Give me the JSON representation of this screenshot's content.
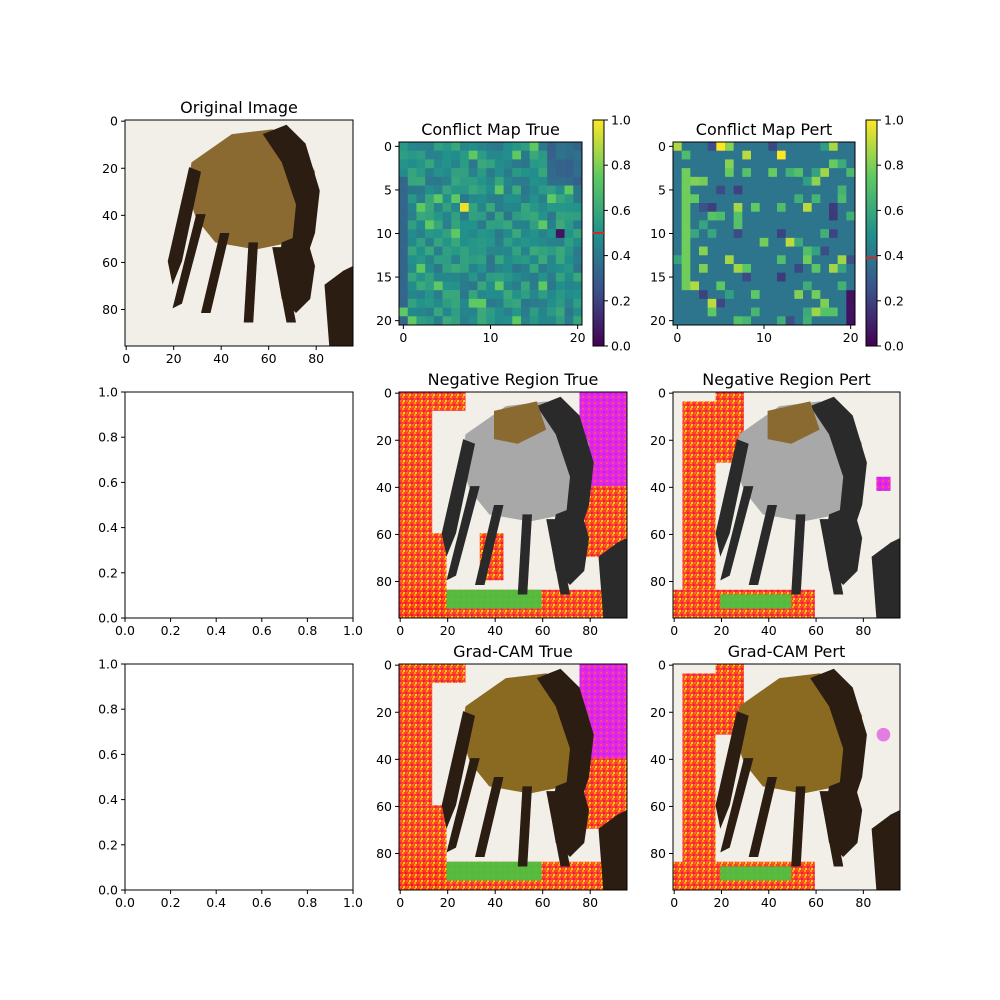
{
  "chart_data": [
    {
      "type": "image",
      "title": "Original Image",
      "content": "horse photo",
      "x_ticks": [
        "0",
        "20",
        "40",
        "60",
        "80"
      ],
      "y_ticks": [
        "0",
        "20",
        "40",
        "60",
        "80"
      ],
      "xlim": [
        0,
        96
      ],
      "ylim": [
        96,
        0
      ]
    },
    {
      "type": "heatmap",
      "title": "Conflict Map True",
      "grid_size": [
        21,
        21
      ],
      "x_ticks": [
        "0",
        "10",
        "20"
      ],
      "y_ticks": [
        "0",
        "5",
        "10",
        "15",
        "20"
      ],
      "colorbar": {
        "range": [
          0,
          1
        ],
        "ticks": [
          "0.0",
          "0.2",
          "0.4",
          "0.6",
          "0.8",
          "1.0"
        ],
        "marker_value": 0.5,
        "marker_color": "#d62728"
      }
    },
    {
      "type": "heatmap",
      "title": "Conflict Map Pert",
      "grid_size": [
        21,
        21
      ],
      "x_ticks": [
        "0",
        "10",
        "20"
      ],
      "y_ticks": [
        "0",
        "5",
        "10",
        "15",
        "20"
      ],
      "colorbar": {
        "range": [
          0,
          1
        ],
        "ticks": [
          "0.0",
          "0.2",
          "0.4",
          "0.6",
          "0.8",
          "1.0"
        ],
        "marker_value": 0.39,
        "marker_color": "#d62728"
      }
    },
    {
      "type": "empty",
      "title": "",
      "x_ticks": [
        "0.0",
        "0.2",
        "0.4",
        "0.6",
        "0.8",
        "1.0"
      ],
      "y_ticks": [
        "0.0",
        "0.2",
        "0.4",
        "0.6",
        "0.8",
        "1.0"
      ],
      "xlim": [
        0,
        1
      ],
      "ylim": [
        0,
        1
      ]
    },
    {
      "type": "image",
      "title": "Negative Region True",
      "content": "horse photo with colored overlay",
      "x_ticks": [
        "0",
        "20",
        "40",
        "60",
        "80"
      ],
      "y_ticks": [
        "0",
        "20",
        "40",
        "60",
        "80"
      ],
      "xlim": [
        0,
        96
      ],
      "ylim": [
        96,
        0
      ]
    },
    {
      "type": "image",
      "title": "Negative Region Pert",
      "content": "horse photo with colored overlay",
      "x_ticks": [
        "0",
        "20",
        "40",
        "60",
        "80"
      ],
      "y_ticks": [
        "0",
        "20",
        "40",
        "60",
        "80"
      ],
      "xlim": [
        0,
        96
      ],
      "ylim": [
        96,
        0
      ]
    },
    {
      "type": "empty",
      "title": "",
      "x_ticks": [
        "0.0",
        "0.2",
        "0.4",
        "0.6",
        "0.8",
        "1.0"
      ],
      "y_ticks": [
        "0.0",
        "0.2",
        "0.4",
        "0.6",
        "0.8",
        "1.0"
      ],
      "xlim": [
        0,
        1
      ],
      "ylim": [
        0,
        1
      ]
    },
    {
      "type": "image",
      "title": "Grad-CAM True",
      "content": "horse photo with colored overlay",
      "x_ticks": [
        "0",
        "20",
        "40",
        "60",
        "80"
      ],
      "y_ticks": [
        "0",
        "20",
        "40",
        "60",
        "80"
      ],
      "xlim": [
        0,
        96
      ],
      "ylim": [
        96,
        0
      ]
    },
    {
      "type": "image",
      "title": "Grad-CAM Pert",
      "content": "horse photo with colored overlay",
      "x_ticks": [
        "0",
        "20",
        "40",
        "60",
        "80"
      ],
      "y_ticks": [
        "0",
        "20",
        "40",
        "60",
        "80"
      ],
      "xlim": [
        0,
        96
      ],
      "ylim": [
        96,
        0
      ]
    }
  ],
  "colors": {
    "horse_dark": "#2b1d12",
    "horse_body": "#8a6a30",
    "background": "#f2eee8",
    "overlay_red": "#ff3a1a",
    "overlay_magenta": "#e020e0",
    "overlay_green": "#4fc040",
    "heat_base": "#2a8a8a"
  }
}
